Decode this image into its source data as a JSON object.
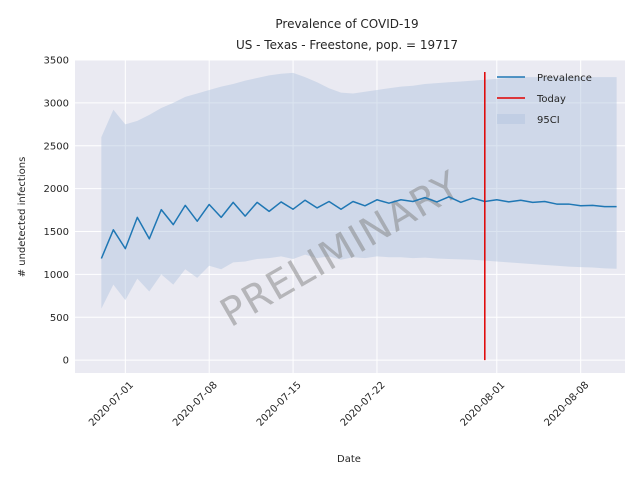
{
  "chart_data": {
    "type": "line",
    "title": "Prevalence of COVID-19",
    "subtitle": "US - Texas - Freestone, pop. = 19717",
    "xlabel": "Date",
    "ylabel": "# undetected infections",
    "watermark": "PRELIMINARY",
    "x_start": "2020-06-29",
    "x_range_days": [
      -2.2,
      43.7
    ],
    "ylim": [
      -150,
      3500
    ],
    "grid": true,
    "legend_position": "top-right",
    "x_ticks": [
      {
        "day": 2,
        "label": "2020-07-01"
      },
      {
        "day": 9,
        "label": "2020-07-08"
      },
      {
        "day": 16,
        "label": "2020-07-15"
      },
      {
        "day": 23,
        "label": "2020-07-22"
      },
      {
        "day": 33,
        "label": "2020-08-01"
      },
      {
        "day": 40,
        "label": "2020-08-08"
      }
    ],
    "y_ticks": [
      0,
      500,
      1000,
      1500,
      2000,
      2500,
      3000,
      3500
    ],
    "series": [
      {
        "name": "Prevalence",
        "type": "line",
        "color": "#1f77b4",
        "values": [
          1185,
          1520,
          1300,
          1665,
          1415,
          1755,
          1580,
          1805,
          1620,
          1815,
          1665,
          1840,
          1680,
          1840,
          1735,
          1845,
          1760,
          1865,
          1775,
          1850,
          1760,
          1850,
          1800,
          1870,
          1830,
          1870,
          1850,
          1895,
          1845,
          1905,
          1840,
          1890,
          1850,
          1870,
          1845,
          1865,
          1840,
          1850,
          1820,
          1820,
          1800,
          1805,
          1790,
          1790
        ]
      },
      {
        "name": "95CI",
        "type": "band",
        "color": "#b0c4de",
        "lower": [
          600,
          880,
          700,
          950,
          800,
          1000,
          880,
          1060,
          960,
          1100,
          1060,
          1140,
          1150,
          1180,
          1190,
          1210,
          1180,
          1230,
          1190,
          1210,
          1170,
          1200,
          1190,
          1210,
          1200,
          1200,
          1190,
          1195,
          1185,
          1180,
          1175,
          1170,
          1160,
          1150,
          1140,
          1130,
          1120,
          1110,
          1100,
          1090,
          1085,
          1080,
          1070,
          1065
        ],
        "upper": [
          2600,
          2920,
          2750,
          2790,
          2860,
          2940,
          3000,
          3070,
          3110,
          3150,
          3190,
          3220,
          3260,
          3290,
          3320,
          3340,
          3350,
          3300,
          3240,
          3170,
          3120,
          3110,
          3130,
          3150,
          3170,
          3190,
          3200,
          3220,
          3230,
          3240,
          3250,
          3260,
          3270,
          3280,
          3290,
          3300,
          3300,
          3300,
          3300,
          3300,
          3300,
          3300,
          3300,
          3300
        ]
      }
    ],
    "today": {
      "name": "Today",
      "day": 32,
      "y_from": 0,
      "y_to": 3360,
      "color": "#e00000"
    }
  }
}
